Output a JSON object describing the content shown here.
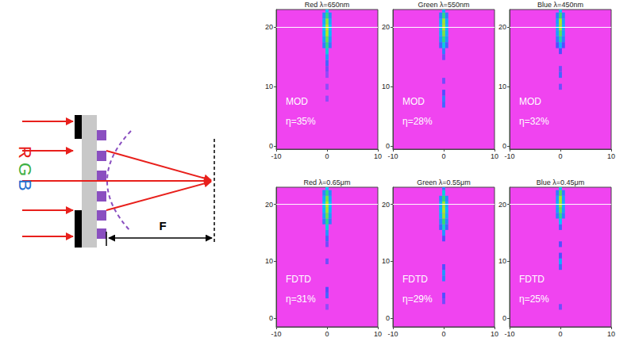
{
  "diagram": {
    "rgb_labels": [
      {
        "text": "R",
        "color": "#e8201c"
      },
      {
        "text": "G",
        "color": "#3cb043"
      },
      {
        "text": "B",
        "color": "#1f6fd0"
      }
    ],
    "focal_label": "F"
  },
  "chart_data": [
    {
      "type": "heatmap",
      "title": "Red λ=650nm",
      "annotations": [
        "MOD",
        "η=35%"
      ],
      "xlim": [
        -10,
        10
      ],
      "xticks": [
        -10,
        0,
        10
      ],
      "ylim": [
        -0.5,
        23
      ],
      "yticks": [
        0,
        10,
        20
      ],
      "grid": false,
      "focal_plane": 20,
      "color_range": [
        0,
        1
      ],
      "cell_size": [
        0.6,
        1
      ],
      "cells": [
        [
          0,
          8,
          0.15
        ],
        [
          0,
          10,
          0.15
        ],
        [
          0,
          12,
          0.15
        ],
        [
          0,
          13,
          0.2
        ],
        [
          0,
          14,
          0.3
        ],
        [
          0,
          15,
          0.4
        ],
        [
          0,
          16,
          0.55
        ],
        [
          0,
          17,
          0.7
        ],
        [
          0,
          18,
          0.82
        ],
        [
          0,
          19,
          0.92
        ],
        [
          0,
          20,
          0.95
        ],
        [
          0,
          21,
          0.88
        ],
        [
          0,
          22,
          0.72
        ],
        [
          0,
          23,
          0.5
        ],
        [
          -0.6,
          17,
          0.35
        ],
        [
          -0.6,
          18,
          0.42
        ],
        [
          -0.6,
          19,
          0.48
        ],
        [
          -0.6,
          20,
          0.5
        ],
        [
          -0.6,
          21,
          0.45
        ],
        [
          -0.6,
          22,
          0.38
        ],
        [
          0.6,
          17,
          0.35
        ],
        [
          0.6,
          18,
          0.42
        ],
        [
          0.6,
          19,
          0.48
        ],
        [
          0.6,
          20,
          0.5
        ],
        [
          0.6,
          21,
          0.45
        ],
        [
          0.6,
          22,
          0.38
        ]
      ]
    },
    {
      "type": "heatmap",
      "title": "Green λ=550nm",
      "annotations": [
        "MOD",
        "η=28%"
      ],
      "xlim": [
        -10,
        10
      ],
      "xticks": [
        -10,
        0,
        10
      ],
      "ylim": [
        -0.5,
        23
      ],
      "yticks": [
        0,
        10,
        20
      ],
      "grid": false,
      "focal_plane": 20,
      "color_range": [
        0,
        1
      ],
      "cell_size": [
        0.6,
        1
      ],
      "cells": [
        [
          0,
          7,
          0.3
        ],
        [
          0,
          8,
          0.35
        ],
        [
          0,
          9,
          0.25
        ],
        [
          0,
          11,
          0.2
        ],
        [
          0,
          15,
          0.2
        ],
        [
          0,
          16,
          0.35
        ],
        [
          0,
          17,
          0.55
        ],
        [
          0,
          18,
          0.72
        ],
        [
          0,
          19,
          0.85
        ],
        [
          0,
          20,
          0.92
        ],
        [
          0,
          21,
          0.9
        ],
        [
          0,
          22,
          0.7
        ],
        [
          0,
          23,
          0.45
        ],
        [
          -0.6,
          17,
          0.3
        ],
        [
          -0.6,
          18,
          0.4
        ],
        [
          -0.6,
          19,
          0.45
        ],
        [
          -0.6,
          20,
          0.48
        ],
        [
          -0.6,
          21,
          0.45
        ],
        [
          -0.6,
          22,
          0.35
        ],
        [
          0.6,
          17,
          0.3
        ],
        [
          0.6,
          18,
          0.4
        ],
        [
          0.6,
          19,
          0.45
        ],
        [
          0.6,
          20,
          0.48
        ],
        [
          0.6,
          21,
          0.45
        ],
        [
          0.6,
          22,
          0.35
        ]
      ]
    },
    {
      "type": "heatmap",
      "title": "Blue λ=450nm",
      "annotations": [
        "MOD",
        "η=32%"
      ],
      "xlim": [
        -10,
        10
      ],
      "xticks": [
        -10,
        0,
        10
      ],
      "ylim": [
        -0.5,
        23
      ],
      "yticks": [
        0,
        10,
        20
      ],
      "grid": false,
      "focal_plane": 20,
      "color_range": [
        0,
        1
      ],
      "cell_size": [
        0.6,
        1
      ],
      "cells": [
        [
          0,
          10,
          0.2
        ],
        [
          0,
          12,
          0.3
        ],
        [
          0,
          13,
          0.2
        ],
        [
          0,
          16,
          0.25
        ],
        [
          0,
          17,
          0.45
        ],
        [
          0,
          18,
          0.65
        ],
        [
          0,
          19,
          0.8
        ],
        [
          0,
          20,
          0.9
        ],
        [
          0,
          21,
          0.92
        ],
        [
          0,
          22,
          0.75
        ],
        [
          0,
          23,
          0.5
        ],
        [
          -0.6,
          17,
          0.25
        ],
        [
          -0.6,
          18,
          0.35
        ],
        [
          -0.6,
          19,
          0.42
        ],
        [
          -0.6,
          20,
          0.45
        ],
        [
          -0.6,
          21,
          0.42
        ],
        [
          -0.6,
          22,
          0.35
        ],
        [
          0.6,
          17,
          0.25
        ],
        [
          0.6,
          18,
          0.35
        ],
        [
          0.6,
          19,
          0.42
        ],
        [
          0.6,
          20,
          0.45
        ],
        [
          0.6,
          21,
          0.42
        ],
        [
          0.6,
          22,
          0.35
        ]
      ]
    },
    {
      "type": "heatmap",
      "title": "Red λ=0.65μm",
      "annotations": [
        "FDTD",
        "η=31%"
      ],
      "xlim": [
        -10,
        10
      ],
      "xticks": [
        -10,
        0,
        10
      ],
      "ylim": [
        -1.5,
        23
      ],
      "yticks": [
        0,
        10,
        20
      ],
      "grid": false,
      "focal_plane": 20,
      "color_range": [
        0,
        1
      ],
      "cell_size": [
        0.6,
        1
      ],
      "cells": [
        [
          0,
          2,
          0.15
        ],
        [
          0,
          4,
          0.3
        ],
        [
          0,
          5,
          0.25
        ],
        [
          0,
          10,
          0.2
        ],
        [
          0,
          13,
          0.2
        ],
        [
          0,
          14,
          0.3
        ],
        [
          0,
          15,
          0.4
        ],
        [
          0,
          16,
          0.55
        ],
        [
          0,
          17,
          0.7
        ],
        [
          0,
          18,
          0.82
        ],
        [
          0,
          19,
          0.9
        ],
        [
          0,
          20,
          0.93
        ],
        [
          0,
          21,
          0.85
        ],
        [
          0,
          22,
          0.7
        ],
        [
          0,
          23,
          0.5
        ],
        [
          -0.6,
          17,
          0.35
        ],
        [
          -0.6,
          18,
          0.42
        ],
        [
          -0.6,
          19,
          0.48
        ],
        [
          -0.6,
          20,
          0.5
        ],
        [
          -0.6,
          21,
          0.45
        ],
        [
          -0.6,
          22,
          0.38
        ],
        [
          0.6,
          17,
          0.35
        ],
        [
          0.6,
          18,
          0.42
        ],
        [
          0.6,
          19,
          0.48
        ],
        [
          0.6,
          20,
          0.5
        ],
        [
          0.6,
          21,
          0.45
        ],
        [
          0.6,
          22,
          0.38
        ]
      ]
    },
    {
      "type": "heatmap",
      "title": "Green λ=0.55μm",
      "annotations": [
        "FDTD",
        "η=29%"
      ],
      "xlim": [
        -10,
        10
      ],
      "xticks": [
        -10,
        0,
        10
      ],
      "ylim": [
        -1.5,
        23
      ],
      "yticks": [
        0,
        10,
        20
      ],
      "grid": false,
      "focal_plane": 20,
      "color_range": [
        0,
        1
      ],
      "cell_size": [
        0.6,
        1
      ],
      "cells": [
        [
          0,
          3,
          0.2
        ],
        [
          0,
          4,
          0.25
        ],
        [
          0,
          7,
          0.35
        ],
        [
          0,
          8,
          0.4
        ],
        [
          0,
          9,
          0.25
        ],
        [
          0,
          14,
          0.25
        ],
        [
          0,
          15,
          0.4
        ],
        [
          0,
          16,
          0.6
        ],
        [
          0,
          17,
          0.75
        ],
        [
          0,
          18,
          0.88
        ],
        [
          0,
          19,
          0.92
        ],
        [
          0,
          20,
          0.9
        ],
        [
          0,
          21,
          0.75
        ],
        [
          0,
          22,
          0.55
        ],
        [
          0,
          23,
          0.35
        ],
        [
          -0.6,
          16,
          0.3
        ],
        [
          -0.6,
          17,
          0.38
        ],
        [
          -0.6,
          18,
          0.45
        ],
        [
          -0.6,
          19,
          0.48
        ],
        [
          -0.6,
          20,
          0.45
        ],
        [
          -0.6,
          21,
          0.38
        ],
        [
          0.6,
          16,
          0.3
        ],
        [
          0.6,
          17,
          0.38
        ],
        [
          0.6,
          18,
          0.45
        ],
        [
          0.6,
          19,
          0.48
        ],
        [
          0.6,
          20,
          0.45
        ],
        [
          0.6,
          21,
          0.38
        ]
      ]
    },
    {
      "type": "heatmap",
      "title": "Blue λ=0.45μm",
      "annotations": [
        "FDTD",
        "η=25%"
      ],
      "xlim": [
        -10,
        10
      ],
      "xticks": [
        -10,
        0,
        10
      ],
      "ylim": [
        -1.5,
        23
      ],
      "yticks": [
        0,
        10,
        20
      ],
      "grid": false,
      "focal_plane": 20,
      "color_range": [
        0,
        1
      ],
      "cell_size": [
        0.6,
        1
      ],
      "cells": [
        [
          0,
          2,
          0.2
        ],
        [
          0,
          9,
          0.3
        ],
        [
          0,
          10,
          0.45
        ],
        [
          0,
          11,
          0.25
        ],
        [
          0,
          13,
          0.25
        ],
        [
          0,
          16,
          0.3
        ],
        [
          0,
          17,
          0.5
        ],
        [
          0,
          18,
          0.7
        ],
        [
          0,
          19,
          0.82
        ],
        [
          0,
          20,
          0.9
        ],
        [
          0,
          21,
          0.92
        ],
        [
          0,
          22,
          0.78
        ],
        [
          0,
          23,
          0.55
        ],
        [
          -0.6,
          18,
          0.35
        ],
        [
          -0.6,
          19,
          0.42
        ],
        [
          -0.6,
          20,
          0.45
        ],
        [
          -0.6,
          21,
          0.42
        ],
        [
          -0.6,
          22,
          0.35
        ],
        [
          0.6,
          18,
          0.35
        ],
        [
          0.6,
          19,
          0.42
        ],
        [
          0.6,
          20,
          0.45
        ],
        [
          0.6,
          21,
          0.42
        ],
        [
          0.6,
          22,
          0.35
        ]
      ]
    }
  ]
}
